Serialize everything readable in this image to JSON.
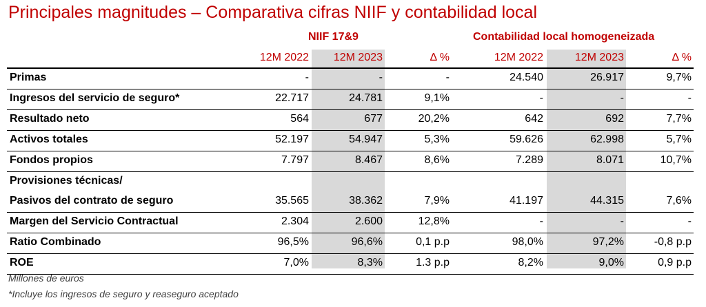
{
  "title": "Principales magnitudes – Comparativa cifras NIIF y contabilidad local",
  "groups": [
    "NIIF 17&9",
    "Contabilidad local homogeneizada"
  ],
  "columns": [
    "12M 2022",
    "12M 2023",
    "Δ %",
    "12M 2022",
    "12M 2023",
    "Δ %"
  ],
  "rows": [
    {
      "label": [
        "Primas"
      ],
      "values": [
        "-",
        "-",
        "-",
        "24.540",
        "26.917",
        "9,7%"
      ]
    },
    {
      "label": [
        "Ingresos del servicio de seguro*"
      ],
      "values": [
        "22.717",
        "24.781",
        "9,1%",
        "-",
        "-",
        "-"
      ]
    },
    {
      "label": [
        "Resultado neto"
      ],
      "values": [
        "564",
        "677",
        "20,2%",
        "642",
        "692",
        "7,7%"
      ]
    },
    {
      "label": [
        "Activos totales"
      ],
      "values": [
        "52.197",
        "54.947",
        "5,3%",
        "59.626",
        "62.998",
        "5,7%"
      ]
    },
    {
      "label": [
        "Fondos propios"
      ],
      "values": [
        "7.797",
        "8.467",
        "8,6%",
        "7.289",
        "8.071",
        "10,7%"
      ]
    },
    {
      "label": [
        "Provisiones técnicas/",
        "Pasivos del contrato de seguro"
      ],
      "values": [
        "35.565",
        "38.362",
        "7,9%",
        "41.197",
        "44.315",
        "7,6%"
      ]
    },
    {
      "label": [
        "Margen del Servicio Contractual"
      ],
      "values": [
        "2.304",
        "2.600",
        "12,8%",
        "-",
        "-",
        "-"
      ]
    },
    {
      "label": [
        "Ratio Combinado"
      ],
      "values": [
        "96,5%",
        "96,6%",
        "0,1 p.p",
        "98,0%",
        "97,2%",
        "-0,8 p.p"
      ]
    },
    {
      "label": [
        "ROE"
      ],
      "values": [
        "7,0%",
        "8,3%",
        "1.3 p.p",
        "8,2%",
        "9,0%",
        "0,9 p.p"
      ]
    }
  ],
  "footnotes": [
    "Millones de euros",
    "*Incluye los ingresos de seguro y reaseguro aceptado"
  ]
}
